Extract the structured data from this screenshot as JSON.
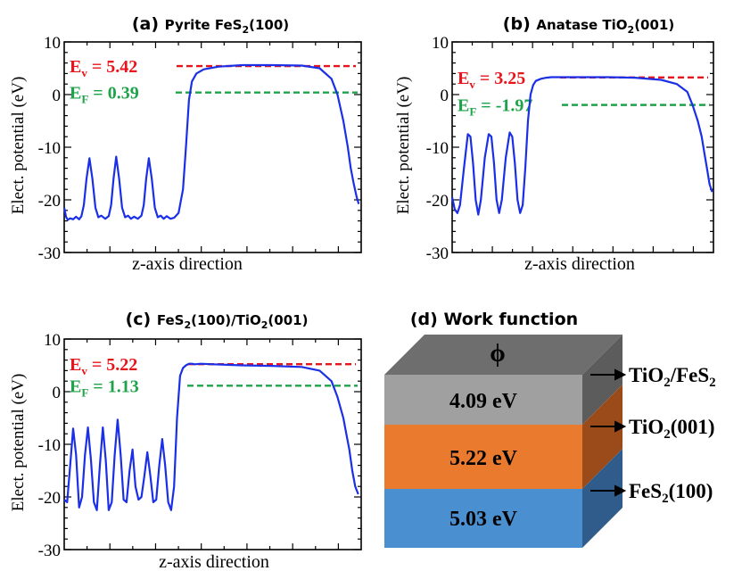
{
  "colors": {
    "curve": "#1a2fe6",
    "ev": "#e8141b",
    "ef": "#1fa34a",
    "frame": "#000000",
    "block_top_face": "#6e6e6e",
    "block_tio2_fes2": "#9a9a9a",
    "block_tio2": "#e97a2e",
    "block_fes2": "#4a8fcf"
  },
  "chart_data": [
    {
      "type": "line",
      "title_letter": "(a)",
      "title_main": "Pyrite FeS",
      "title_sub": "2",
      "title_tail": "(100)",
      "xlabel": "z-axis direction",
      "ylabel": "Elect. potential (eV)",
      "ylim": [
        -30,
        10
      ],
      "yticks": [
        "10",
        "0",
        "-10",
        "-20",
        "-30"
      ],
      "grid": false,
      "ev": {
        "label": "E",
        "sub": "v",
        "text": " = 5.42",
        "value": 5.42
      },
      "ef": {
        "label": "E",
        "sub": "F",
        "text": " = 0.39",
        "value": 0.39
      },
      "series": [
        {
          "x": [
            0,
            0.006,
            0.012,
            0.02,
            0.03,
            0.04,
            0.05,
            0.058,
            0.066,
            0.075,
            0.085,
            0.095,
            0.105,
            0.115,
            0.125,
            0.138,
            0.15,
            0.158,
            0.166,
            0.175,
            0.185,
            0.195,
            0.205,
            0.215,
            0.225,
            0.235,
            0.248,
            0.26,
            0.268,
            0.276,
            0.285,
            0.295,
            0.305,
            0.315,
            0.325,
            0.335,
            0.345,
            0.358,
            0.37,
            0.385,
            0.4,
            0.41,
            0.42,
            0.43,
            0.445,
            0.47,
            0.52,
            0.6,
            0.7,
            0.8,
            0.86,
            0.9,
            0.92,
            0.94,
            0.955,
            0.965,
            0.975,
            0.985,
            0.992
          ],
          "y": [
            -21.5,
            -23.2,
            -23.8,
            -23.5,
            -23.7,
            -23.2,
            -23.7,
            -23.1,
            -21,
            -16,
            -12.1,
            -16,
            -21.5,
            -23.3,
            -23.0,
            -23.6,
            -23.1,
            -21,
            -16,
            -11.8,
            -16,
            -21.5,
            -23.3,
            -23.0,
            -23.6,
            -23.2,
            -23.6,
            -23.0,
            -21,
            -16,
            -12.1,
            -16,
            -21.5,
            -23.3,
            -23.0,
            -23.6,
            -23.1,
            -23.6,
            -23.4,
            -22.5,
            -18,
            -10,
            -1,
            2.5,
            4.0,
            4.8,
            5.3,
            5.6,
            5.6,
            5.5,
            5.0,
            3.0,
            0,
            -5,
            -10,
            -14,
            -17,
            -19.5,
            -20.8
          ]
        }
      ]
    },
    {
      "type": "line",
      "title_letter": "(b)",
      "title_main": "Anatase TiO",
      "title_sub": "2",
      "title_tail": "(001)",
      "xlabel": "z-axis direction",
      "ylabel": "Elect. potential (eV)",
      "ylim": [
        -30,
        10
      ],
      "yticks": [
        "10",
        "0",
        "-10",
        "-20",
        "-30"
      ],
      "grid": false,
      "ev": {
        "label": "E",
        "sub": "v",
        "text": " = 3.25",
        "value": 3.25
      },
      "ef": {
        "label": "E",
        "sub": "F",
        "text": " = -1.97",
        "value": -1.97
      },
      "series": [
        {
          "x": [
            0,
            0.01,
            0.02,
            0.03,
            0.045,
            0.06,
            0.07,
            0.08,
            0.09,
            0.1,
            0.11,
            0.125,
            0.14,
            0.15,
            0.16,
            0.17,
            0.18,
            0.19,
            0.205,
            0.22,
            0.23,
            0.24,
            0.25,
            0.26,
            0.27,
            0.28,
            0.29,
            0.3,
            0.31,
            0.32,
            0.34,
            0.36,
            0.38,
            0.42,
            0.5,
            0.6,
            0.7,
            0.8,
            0.86,
            0.9,
            0.92,
            0.94,
            0.955,
            0.965,
            0.975,
            0.985,
            0.995
          ],
          "y": [
            -19.5,
            -21.8,
            -22.5,
            -21,
            -14,
            -7.5,
            -8,
            -13,
            -20,
            -22.8,
            -20,
            -12,
            -7.5,
            -8,
            -13,
            -20,
            -22.5,
            -20,
            -12,
            -7.2,
            -8,
            -13,
            -20,
            -22.5,
            -21,
            -14,
            -5,
            0,
            1.8,
            2.6,
            3.0,
            3.2,
            3.3,
            3.3,
            3.3,
            3.3,
            3.2,
            2.8,
            2.0,
            0.5,
            -2,
            -5,
            -8,
            -11,
            -14,
            -17,
            -18.5
          ]
        }
      ]
    },
    {
      "type": "line",
      "title_letter": "(c)",
      "title_main": "FeS",
      "title_sub": "2",
      "title_tail": "(100)/TiO",
      "title_sub2": "2",
      "title_tail2": "(001)",
      "xlabel": "z-axis direction",
      "ylabel": "Elect. potential (eV)",
      "ylim": [
        -30,
        10
      ],
      "yticks": [
        "10",
        "0",
        "-10",
        "-20",
        "-30"
      ],
      "grid": false,
      "ev": {
        "label": "E",
        "sub": "v",
        "text": " = 5.22",
        "value": 5.22
      },
      "ef": {
        "label": "E",
        "sub": "F",
        "text": " = 1.13",
        "value": 1.13
      },
      "series": [
        {
          "x": [
            0,
            0.01,
            0.02,
            0.03,
            0.04,
            0.05,
            0.06,
            0.07,
            0.08,
            0.09,
            0.1,
            0.11,
            0.12,
            0.13,
            0.14,
            0.15,
            0.16,
            0.17,
            0.18,
            0.19,
            0.2,
            0.21,
            0.22,
            0.23,
            0.24,
            0.25,
            0.26,
            0.27,
            0.28,
            0.29,
            0.3,
            0.31,
            0.32,
            0.33,
            0.34,
            0.35,
            0.36,
            0.37,
            0.38,
            0.39,
            0.4,
            0.41,
            0.42,
            0.43,
            0.44,
            0.46,
            0.5,
            0.6,
            0.7,
            0.8,
            0.86,
            0.9,
            0.92,
            0.94,
            0.95,
            0.96,
            0.97,
            0.98,
            0.99
          ],
          "y": [
            -20.5,
            -21,
            -14,
            -7,
            -12,
            -22,
            -20,
            -12,
            -6.8,
            -13,
            -21,
            -22.5,
            -14,
            -6.8,
            -13,
            -22.5,
            -21,
            -12,
            -5.3,
            -12,
            -20.5,
            -21,
            -15,
            -11,
            -18,
            -20.5,
            -20,
            -16,
            -11.5,
            -16,
            -21,
            -20.5,
            -14,
            -9,
            -14,
            -21,
            -22.5,
            -18,
            -5,
            3.0,
            4.5,
            5.0,
            5.3,
            5.3,
            5.2,
            5.3,
            5.2,
            5.0,
            4.9,
            4.7,
            4.0,
            2.0,
            -1,
            -5,
            -8,
            -11,
            -15,
            -18,
            -19.5
          ]
        }
      ]
    }
  ],
  "work_function": {
    "title_letter": "(d)",
    "title": "Work function",
    "phi": "ϕ",
    "layers": [
      {
        "value": "4.09 eV",
        "label": "TiO",
        "sub": "2",
        "mid": "/FeS",
        "sub2": "2"
      },
      {
        "value": "5.22 eV",
        "label": "TiO",
        "sub": "2",
        "mid": "(001)",
        "sub2": ""
      },
      {
        "value": "5.03 eV",
        "label": "FeS",
        "sub": "2",
        "mid": "(100)",
        "sub2": ""
      }
    ]
  }
}
